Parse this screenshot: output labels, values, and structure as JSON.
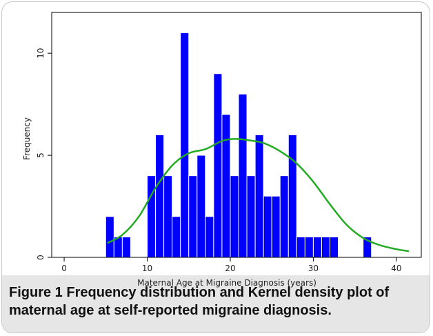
{
  "chart_data": {
    "type": "bar",
    "xlabel": "Maternal Age at Migraine Diagnosis (years)",
    "ylabel": "Frequency",
    "xlim": [
      -1.5,
      43
    ],
    "ylim": [
      0,
      12
    ],
    "xticks": [
      "0",
      "10",
      "20",
      "30",
      "40"
    ],
    "yticks": [
      "0",
      "5",
      "10"
    ],
    "bar_color": "#0000ff",
    "curve_color": "#22aa22",
    "bars": [
      {
        "start": 5,
        "end": 6,
        "value": 2
      },
      {
        "start": 6,
        "end": 7,
        "value": 1
      },
      {
        "start": 7,
        "end": 8,
        "value": 1
      },
      {
        "start": 10,
        "end": 11,
        "value": 4
      },
      {
        "start": 11,
        "end": 12,
        "value": 6
      },
      {
        "start": 12,
        "end": 13,
        "value": 4
      },
      {
        "start": 13,
        "end": 14,
        "value": 2
      },
      {
        "start": 14,
        "end": 15,
        "value": 11
      },
      {
        "start": 15,
        "end": 16,
        "value": 4
      },
      {
        "start": 16,
        "end": 17,
        "value": 5
      },
      {
        "start": 17,
        "end": 18,
        "value": 2
      },
      {
        "start": 18,
        "end": 19,
        "value": 9
      },
      {
        "start": 19,
        "end": 20,
        "value": 7
      },
      {
        "start": 20,
        "end": 21,
        "value": 4
      },
      {
        "start": 21,
        "end": 22,
        "value": 8
      },
      {
        "start": 22,
        "end": 23,
        "value": 4
      },
      {
        "start": 23,
        "end": 24,
        "value": 6
      },
      {
        "start": 24,
        "end": 25,
        "value": 3
      },
      {
        "start": 25,
        "end": 26,
        "value": 3
      },
      {
        "start": 26,
        "end": 27,
        "value": 4
      },
      {
        "start": 27,
        "end": 28,
        "value": 6
      },
      {
        "start": 28,
        "end": 29,
        "value": 1
      },
      {
        "start": 29,
        "end": 30,
        "value": 1
      },
      {
        "start": 30,
        "end": 31,
        "value": 1
      },
      {
        "start": 31,
        "end": 32,
        "value": 1
      },
      {
        "start": 32,
        "end": 33,
        "value": 1
      },
      {
        "start": 36,
        "end": 37,
        "value": 1
      }
    ],
    "density_curve": [
      {
        "x": 5.2,
        "y": 0.7
      },
      {
        "x": 7,
        "y": 1.1
      },
      {
        "x": 9,
        "y": 2.0
      },
      {
        "x": 11,
        "y": 3.4
      },
      {
        "x": 13,
        "y": 4.5
      },
      {
        "x": 15,
        "y": 5.1
      },
      {
        "x": 17,
        "y": 5.3
      },
      {
        "x": 19,
        "y": 5.7
      },
      {
        "x": 20.5,
        "y": 5.8
      },
      {
        "x": 22,
        "y": 5.75
      },
      {
        "x": 24,
        "y": 5.6
      },
      {
        "x": 26,
        "y": 5.2
      },
      {
        "x": 28,
        "y": 4.6
      },
      {
        "x": 30,
        "y": 3.7
      },
      {
        "x": 32,
        "y": 2.6
      },
      {
        "x": 34,
        "y": 1.6
      },
      {
        "x": 36,
        "y": 0.95
      },
      {
        "x": 38,
        "y": 0.6
      },
      {
        "x": 40,
        "y": 0.4
      },
      {
        "x": 41.5,
        "y": 0.3
      }
    ]
  },
  "caption": {
    "label": "Figure 1",
    "text": "Frequency distribution and Kernel density plot of maternal age at self-reported migraine diagnosis."
  }
}
